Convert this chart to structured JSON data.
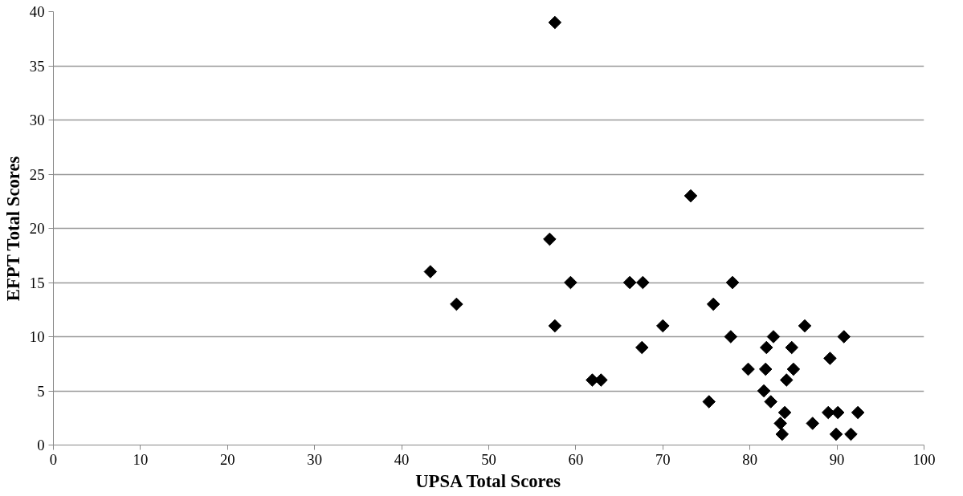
{
  "chart_data": {
    "type": "scatter",
    "xlabel": "UPSA Total Scores",
    "ylabel": "EFPT Total Scores",
    "x": [
      43.3,
      46.3,
      57,
      57.6,
      57.6,
      59.4,
      61.9,
      62.9,
      66.2,
      67.6,
      67.7,
      70,
      73.2,
      75.3,
      75.8,
      77.8,
      78,
      79.8,
      81.6,
      81.8,
      81.9,
      82.4,
      82.7,
      83.5,
      83.7,
      84,
      84.2,
      84.8,
      85,
      86.3,
      87.2,
      89,
      89.2,
      89.9,
      90.1,
      90.8,
      91.6,
      92.4
    ],
    "series": [
      {
        "color": "#000000",
        "values": [
          16,
          13,
          19,
          39,
          11,
          15,
          6,
          6,
          15,
          9,
          15,
          11,
          23,
          4,
          13,
          10,
          15,
          7,
          5,
          7,
          9,
          4,
          10,
          2,
          1,
          3,
          6,
          9,
          7,
          11,
          2,
          3,
          8,
          1,
          3,
          10,
          1,
          3
        ]
      }
    ],
    "xlim": [
      0,
      100
    ],
    "ylim": [
      0,
      40
    ],
    "xticks": [
      0,
      10,
      20,
      30,
      40,
      50,
      60,
      70,
      80,
      90,
      100
    ],
    "yticks": [
      0,
      5,
      10,
      15,
      20,
      25,
      30,
      35,
      40
    ],
    "grid": "y",
    "marker": "diamond"
  }
}
